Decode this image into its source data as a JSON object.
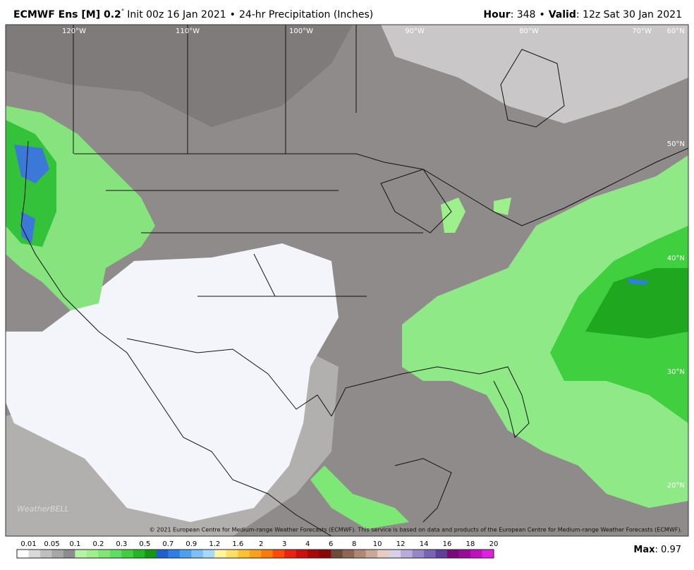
{
  "header": {
    "title_bold": "ECMWF Ens [M] 0.2",
    "title_degree": "°",
    "title_init": "Init 00z 16 Jan 2021",
    "title_sep": "•",
    "title_field": "24-hr Precipitation (Inches)",
    "hour_label": "Hour",
    "hour_value": ": 348",
    "valid_sep": "•",
    "valid_label": "Valid",
    "valid_value": ": 12z Sat 30 Jan 2021"
  },
  "map": {
    "lon_labels": [
      "120°W",
      "110°W",
      "100°W",
      "90°W",
      "80°W",
      "70°W",
      "60°N"
    ],
    "lat_labels": [
      "50°N",
      "40°N",
      "30°N",
      "20°N"
    ],
    "copyright": "© 2021 European Centre for Medium-range Weather Forecasts (ECMWF). This service is based on data and products of the European Centre for Medium-range Weather Forecasts (ECMWF).",
    "watermark": "WeatherBELL"
  },
  "colorbar": {
    "labels": [
      "0.01",
      "0.05",
      "0.1",
      "0.2",
      "0.3",
      "0.5",
      "0.7",
      "0.9",
      "1.2",
      "1.6",
      "2",
      "3",
      "4",
      "6",
      "8",
      "10",
      "12",
      "14",
      "16",
      "18",
      "20"
    ],
    "colors": [
      "#ffffff",
      "#d9d9d9",
      "#bfbfbf",
      "#a6a6a6",
      "#8c8c8c",
      "#b3f5a3",
      "#9ef08c",
      "#7ee876",
      "#5fdf5f",
      "#3fcf3f",
      "#21b821",
      "#119911",
      "#1f5fcf",
      "#2f7fe8",
      "#4f9ff0",
      "#7fbff8",
      "#a8d8fb",
      "#fff59d",
      "#ffe066",
      "#ffc233",
      "#ff9f1a",
      "#ff7a0a",
      "#ff4a0a",
      "#e8240f",
      "#cc1010",
      "#a80a0a",
      "#8b0707",
      "#6e4a3a",
      "#8f6655",
      "#b08878",
      "#c9a89a",
      "#e5cbc2",
      "#d8d0e8",
      "#b8acd8",
      "#9886c8",
      "#7a64b4",
      "#5e3f9a",
      "#7a0a7a",
      "#9a0a9a",
      "#c010c0",
      "#e020e0"
    ]
  },
  "max": {
    "label": "Max",
    "value": ": 0.97"
  }
}
